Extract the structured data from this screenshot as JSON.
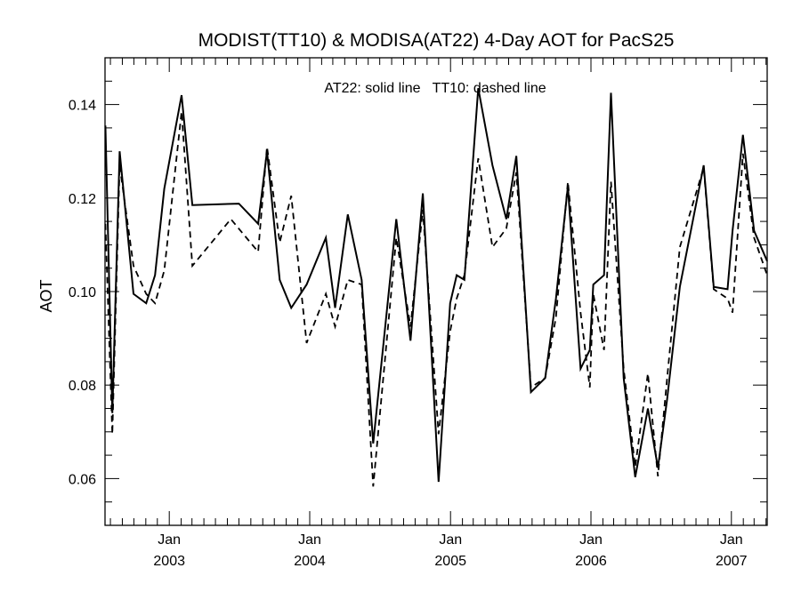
{
  "chart_data": {
    "type": "line",
    "title": "MODIST(TT10) & MODISA(AT22) 4-Day AOT for PacS25",
    "annotation": "AT22: solid line   TT10: dashed line",
    "ylabel": "AOT",
    "xlabel": "",
    "ylim": [
      0.05,
      0.15
    ],
    "xlim": [
      "2002-07-18",
      "2007-04-04"
    ],
    "grid": false,
    "y_ticks": [
      {
        "value": 0.06,
        "label": "0.06"
      },
      {
        "value": 0.08,
        "label": "0.08"
      },
      {
        "value": 0.1,
        "label": "0.10"
      },
      {
        "value": 0.12,
        "label": "0.12"
      },
      {
        "value": 0.14,
        "label": "0.14"
      }
    ],
    "x_ticks": [
      {
        "date": "2003-01-01",
        "month": "Jan",
        "year": "2003"
      },
      {
        "date": "2004-01-01",
        "month": "Jan",
        "year": "2004"
      },
      {
        "date": "2005-01-01",
        "month": "Jan",
        "year": "2005"
      },
      {
        "date": "2006-01-01",
        "month": "Jan",
        "year": "2006"
      },
      {
        "date": "2007-01-01",
        "month": "Jan",
        "year": "2007"
      }
    ],
    "series": [
      {
        "name": "AT22",
        "line_style": "solid",
        "color": "#000000",
        "points": [
          [
            "2002-07-19",
            0.1355
          ],
          [
            "2002-08-06",
            0.074
          ],
          [
            "2002-08-25",
            0.13
          ],
          [
            "2002-09-30",
            0.0995
          ],
          [
            "2002-11-02",
            0.0975
          ],
          [
            "2002-11-25",
            0.1035
          ],
          [
            "2002-12-19",
            0.122
          ],
          [
            "2003-02-02",
            0.142
          ],
          [
            "2003-03-02",
            0.1185
          ],
          [
            "2003-07-01",
            0.1188
          ],
          [
            "2003-08-20",
            0.1145
          ],
          [
            "2003-09-12",
            0.13
          ],
          [
            "2003-10-15",
            0.1025
          ],
          [
            "2003-11-14",
            0.0965
          ],
          [
            "2003-12-24",
            0.1015
          ],
          [
            "2004-02-12",
            0.1115
          ],
          [
            "2004-03-07",
            0.0965
          ],
          [
            "2004-04-09",
            0.1165
          ],
          [
            "2004-05-15",
            0.1025
          ],
          [
            "2004-06-14",
            0.0675
          ],
          [
            "2004-08-13",
            0.1155
          ],
          [
            "2004-09-19",
            0.0895
          ],
          [
            "2004-10-21",
            0.121
          ],
          [
            "2004-12-01",
            0.0593
          ],
          [
            "2004-12-31",
            0.0975
          ],
          [
            "2005-01-17",
            0.1035
          ],
          [
            "2005-02-06",
            0.1025
          ],
          [
            "2005-03-14",
            0.1435
          ],
          [
            "2005-04-20",
            0.127
          ],
          [
            "2005-05-26",
            0.1155
          ],
          [
            "2005-06-21",
            0.129
          ],
          [
            "2005-07-29",
            0.0785
          ],
          [
            "2005-09-04",
            0.0815
          ],
          [
            "2005-10-02",
            0.0985
          ],
          [
            "2005-11-02",
            0.1225
          ],
          [
            "2005-12-05",
            0.0835
          ],
          [
            "2005-12-29",
            0.0875
          ],
          [
            "2006-01-07",
            0.1015
          ],
          [
            "2006-02-04",
            0.1035
          ],
          [
            "2006-02-22",
            0.1425
          ],
          [
            "2006-03-27",
            0.0815
          ],
          [
            "2006-04-26",
            0.0603
          ],
          [
            "2006-05-29",
            0.075
          ],
          [
            "2006-06-24",
            0.0623
          ],
          [
            "2006-07-18",
            0.077
          ],
          [
            "2006-08-20",
            0.101
          ],
          [
            "2006-10-21",
            0.127
          ],
          [
            "2006-11-16",
            0.101
          ],
          [
            "2006-12-22",
            0.1005
          ],
          [
            "2007-01-04",
            0.113
          ],
          [
            "2007-01-31",
            0.1335
          ],
          [
            "2007-03-01",
            0.113
          ],
          [
            "2007-04-04",
            0.1065
          ]
        ]
      },
      {
        "name": "TT10",
        "line_style": "dashed",
        "color": "#000000",
        "points": [
          [
            "2002-07-19",
            0.1145
          ],
          [
            "2002-08-06",
            0.0695
          ],
          [
            "2002-08-25",
            0.127
          ],
          [
            "2002-09-30",
            0.1055
          ],
          [
            "2002-11-02",
            0.0995
          ],
          [
            "2002-11-25",
            0.0975
          ],
          [
            "2002-12-19",
            0.1045
          ],
          [
            "2003-02-02",
            0.1385
          ],
          [
            "2003-03-02",
            0.1055
          ],
          [
            "2003-06-10",
            0.1155
          ],
          [
            "2003-08-20",
            0.1085
          ],
          [
            "2003-09-12",
            0.131
          ],
          [
            "2003-10-15",
            0.1105
          ],
          [
            "2003-11-14",
            0.1205
          ],
          [
            "2003-12-24",
            0.089
          ],
          [
            "2004-02-12",
            0.0995
          ],
          [
            "2004-03-07",
            0.0925
          ],
          [
            "2004-04-09",
            0.1025
          ],
          [
            "2004-05-15",
            0.1015
          ],
          [
            "2004-06-14",
            0.0583
          ],
          [
            "2004-08-13",
            0.1115
          ],
          [
            "2004-09-19",
            0.0925
          ],
          [
            "2004-10-21",
            0.1175
          ],
          [
            "2004-12-01",
            0.0695
          ],
          [
            "2004-12-31",
            0.0915
          ],
          [
            "2005-01-17",
            0.0985
          ],
          [
            "2005-02-06",
            0.1035
          ],
          [
            "2005-03-14",
            0.1285
          ],
          [
            "2005-04-20",
            0.1095
          ],
          [
            "2005-05-26",
            0.1135
          ],
          [
            "2005-06-21",
            0.1255
          ],
          [
            "2005-07-29",
            0.0795
          ],
          [
            "2005-09-04",
            0.0815
          ],
          [
            "2005-10-02",
            0.0945
          ],
          [
            "2005-11-02",
            0.1235
          ],
          [
            "2005-12-05",
            0.0955
          ],
          [
            "2005-12-29",
            0.0795
          ],
          [
            "2006-01-07",
            0.0995
          ],
          [
            "2006-02-04",
            0.0875
          ],
          [
            "2006-02-22",
            0.1235
          ],
          [
            "2006-03-27",
            0.0835
          ],
          [
            "2006-04-26",
            0.0625
          ],
          [
            "2006-05-29",
            0.0825
          ],
          [
            "2006-06-24",
            0.0605
          ],
          [
            "2006-07-18",
            0.0815
          ],
          [
            "2006-08-20",
            0.1095
          ],
          [
            "2006-10-21",
            0.1265
          ],
          [
            "2006-11-16",
            0.1005
          ],
          [
            "2006-12-22",
            0.0985
          ],
          [
            "2007-01-04",
            0.0955
          ],
          [
            "2007-01-31",
            0.1295
          ],
          [
            "2007-03-01",
            0.1115
          ],
          [
            "2007-04-04",
            0.1035
          ]
        ]
      }
    ]
  }
}
